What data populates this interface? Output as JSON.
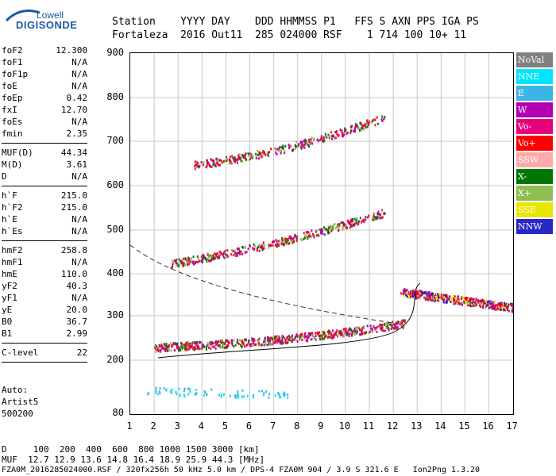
{
  "logo": {
    "line1": "Lowell",
    "line2": "DIGISONDE"
  },
  "header": {
    "labels": "Station    YYYY DAY    DDD HHMMSS P1   FFS S AXN PPS IGA PS",
    "values": "Fortaleza  2016 Out11  285 024000 RSF    1 714 100 10+ 11"
  },
  "params_group1": [
    {
      "k": "foF2",
      "v": "12.300"
    },
    {
      "k": "foF1",
      "v": "N/A"
    },
    {
      "k": "foF1p",
      "v": "N/A"
    },
    {
      "k": "foE",
      "v": "N/A"
    },
    {
      "k": "foEp",
      "v": "0.42"
    },
    {
      "k": "fxI",
      "v": "12.70"
    },
    {
      "k": "foEs",
      "v": "N/A"
    },
    {
      "k": "fmin",
      "v": "2.35"
    }
  ],
  "params_group2": [
    {
      "k": "MUF(D)",
      "v": "44.34"
    },
    {
      "k": "M(D)",
      "v": "3.61"
    },
    {
      "k": "D",
      "v": "N/A"
    }
  ],
  "params_group3": [
    {
      "k": "h`F",
      "v": "215.0"
    },
    {
      "k": "h`F2",
      "v": "215.0"
    },
    {
      "k": "h`E",
      "v": "N/A"
    },
    {
      "k": "h`Es",
      "v": "N/A"
    }
  ],
  "params_group4": [
    {
      "k": "hmF2",
      "v": "258.8"
    },
    {
      "k": "hmF1",
      "v": "N/A"
    },
    {
      "k": "hmE",
      "v": "110.0"
    },
    {
      "k": "yF2",
      "v": "40.3"
    },
    {
      "k": "yF1",
      "v": "N/A"
    },
    {
      "k": "yE",
      "v": "20.0"
    },
    {
      "k": "B0",
      "v": "36.7"
    },
    {
      "k": "B1",
      "v": "2.99"
    }
  ],
  "params_group5": [
    {
      "k": "C-level",
      "v": "22"
    }
  ],
  "auto": [
    "Auto:",
    "Artist5",
    "500200"
  ],
  "axis": {
    "y_ticks": [
      "900",
      "800",
      "700",
      "600",
      "500",
      "400",
      "300",
      "200",
      "80"
    ],
    "x_ticks": [
      "1",
      "2",
      "3",
      "4",
      "5",
      "6",
      "7",
      "8",
      "9",
      "10",
      "11",
      "12",
      "13",
      "14",
      "15",
      "16",
      "17"
    ]
  },
  "legend": [
    {
      "label": "NoVal",
      "color": "#808080",
      "text": "#ffffff"
    },
    {
      "label": "NNE",
      "color": "#00e5ff",
      "text": "#ffffff"
    },
    {
      "label": "E",
      "color": "#3cb4e6",
      "text": "#ffffff"
    },
    {
      "label": "W",
      "color": "#b400b4",
      "text": "#ffffff"
    },
    {
      "label": "Vo-",
      "color": "#e6007a",
      "text": "#ffffff"
    },
    {
      "label": "Vo+",
      "color": "#ff0000",
      "text": "#ffffff"
    },
    {
      "label": "SSW",
      "color": "#ffaaaa",
      "text": "#ffffff"
    },
    {
      "label": "X-",
      "color": "#007800",
      "text": "#ffffff"
    },
    {
      "label": "X+",
      "color": "#8cbe50",
      "text": "#ffffff"
    },
    {
      "label": "SSE",
      "color": "#e6e600",
      "text": "#ffffff"
    },
    {
      "label": "NNW",
      "color": "#2828c8",
      "text": "#ffffff"
    }
  ],
  "bottom": {
    "line1": "D     100  200  400  600  800 1000 1500 3000 [km]",
    "line2": "MUF  12.7 12.9 13.6 14.8 16.4 18.9 25.9 44.3 [MHz]",
    "line3": "FZA0M_2016285024000.RSF / 320fx256h 50 kHz 5.0 km / DPS-4 FZA0M 904 / 3.9 S 321.6 E   Ion2Png 1.3.20"
  }
}
